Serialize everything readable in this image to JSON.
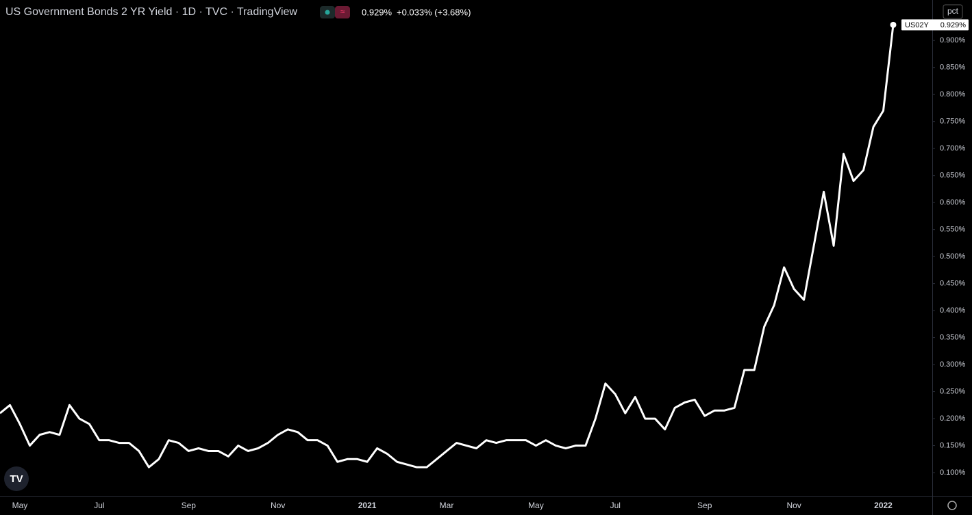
{
  "chart_data": {
    "type": "line",
    "title": "US Government Bonds 2 YR Yield · 1D · TVC · TradingView",
    "header": {
      "price": "0.929%",
      "change": "+0.033% (+3.68%)"
    },
    "price_tag": {
      "symbol": "US02Y",
      "label": "0.929%"
    },
    "scale_button": "pct",
    "categories": [
      null,
      null,
      "May",
      null,
      null,
      null,
      null,
      null,
      null,
      null,
      "Jul",
      null,
      null,
      null,
      null,
      null,
      null,
      null,
      null,
      "Sep",
      null,
      null,
      null,
      null,
      null,
      null,
      null,
      null,
      "Nov",
      null,
      null,
      null,
      null,
      null,
      null,
      null,
      null,
      "2021",
      null,
      null,
      null,
      null,
      null,
      null,
      null,
      "Mar",
      null,
      null,
      null,
      null,
      null,
      null,
      null,
      null,
      "May",
      null,
      null,
      null,
      null,
      null,
      null,
      null,
      "Jul",
      null,
      null,
      null,
      null,
      null,
      null,
      null,
      null,
      "Sep",
      null,
      null,
      null,
      null,
      null,
      null,
      null,
      null,
      "Nov",
      null,
      null,
      null,
      null,
      null,
      null,
      null,
      null,
      "2022",
      null
    ],
    "series": [
      {
        "name": "US02Y",
        "color": "#ffffff",
        "values": [
          0.21,
          0.225,
          0.19,
          0.15,
          0.17,
          0.175,
          0.17,
          0.225,
          0.2,
          0.19,
          0.16,
          0.16,
          0.155,
          0.155,
          0.14,
          0.11,
          0.125,
          0.16,
          0.155,
          0.14,
          0.145,
          0.14,
          0.14,
          0.13,
          0.15,
          0.14,
          0.145,
          0.155,
          0.17,
          0.18,
          0.175,
          0.16,
          0.16,
          0.15,
          0.12,
          0.125,
          0.125,
          0.12,
          0.145,
          0.135,
          0.12,
          0.115,
          0.11,
          0.11,
          0.125,
          0.14,
          0.155,
          0.15,
          0.145,
          0.16,
          0.155,
          0.16,
          0.16,
          0.16,
          0.15,
          0.16,
          0.15,
          0.145,
          0.15,
          0.15,
          0.2,
          0.265,
          0.245,
          0.21,
          0.24,
          0.2,
          0.2,
          0.18,
          0.22,
          0.23,
          0.235,
          0.205,
          0.215,
          0.215,
          0.22,
          0.29,
          0.29,
          0.37,
          0.41,
          0.48,
          0.44,
          0.42,
          0.52,
          0.62,
          0.52,
          0.69,
          0.64,
          0.66,
          0.74,
          0.77,
          0.929
        ]
      }
    ],
    "ylim": [
      0.057,
      0.975
    ],
    "yticks": [
      {
        "value": 0.1,
        "label": "0.100%"
      },
      {
        "value": 0.15,
        "label": "0.150%"
      },
      {
        "value": 0.2,
        "label": "0.200%"
      },
      {
        "value": 0.25,
        "label": "0.250%"
      },
      {
        "value": 0.3,
        "label": "0.300%"
      },
      {
        "value": 0.35,
        "label": "0.350%"
      },
      {
        "value": 0.4,
        "label": "0.400%"
      },
      {
        "value": 0.45,
        "label": "0.450%"
      },
      {
        "value": 0.5,
        "label": "0.500%"
      },
      {
        "value": 0.55,
        "label": "0.550%"
      },
      {
        "value": 0.6,
        "label": "0.600%"
      },
      {
        "value": 0.65,
        "label": "0.650%"
      },
      {
        "value": 0.7,
        "label": "0.700%"
      },
      {
        "value": 0.75,
        "label": "0.750%"
      },
      {
        "value": 0.8,
        "label": "0.800%"
      },
      {
        "value": 0.85,
        "label": "0.850%"
      },
      {
        "value": 0.9,
        "label": "0.900%"
      }
    ],
    "grid": false
  }
}
